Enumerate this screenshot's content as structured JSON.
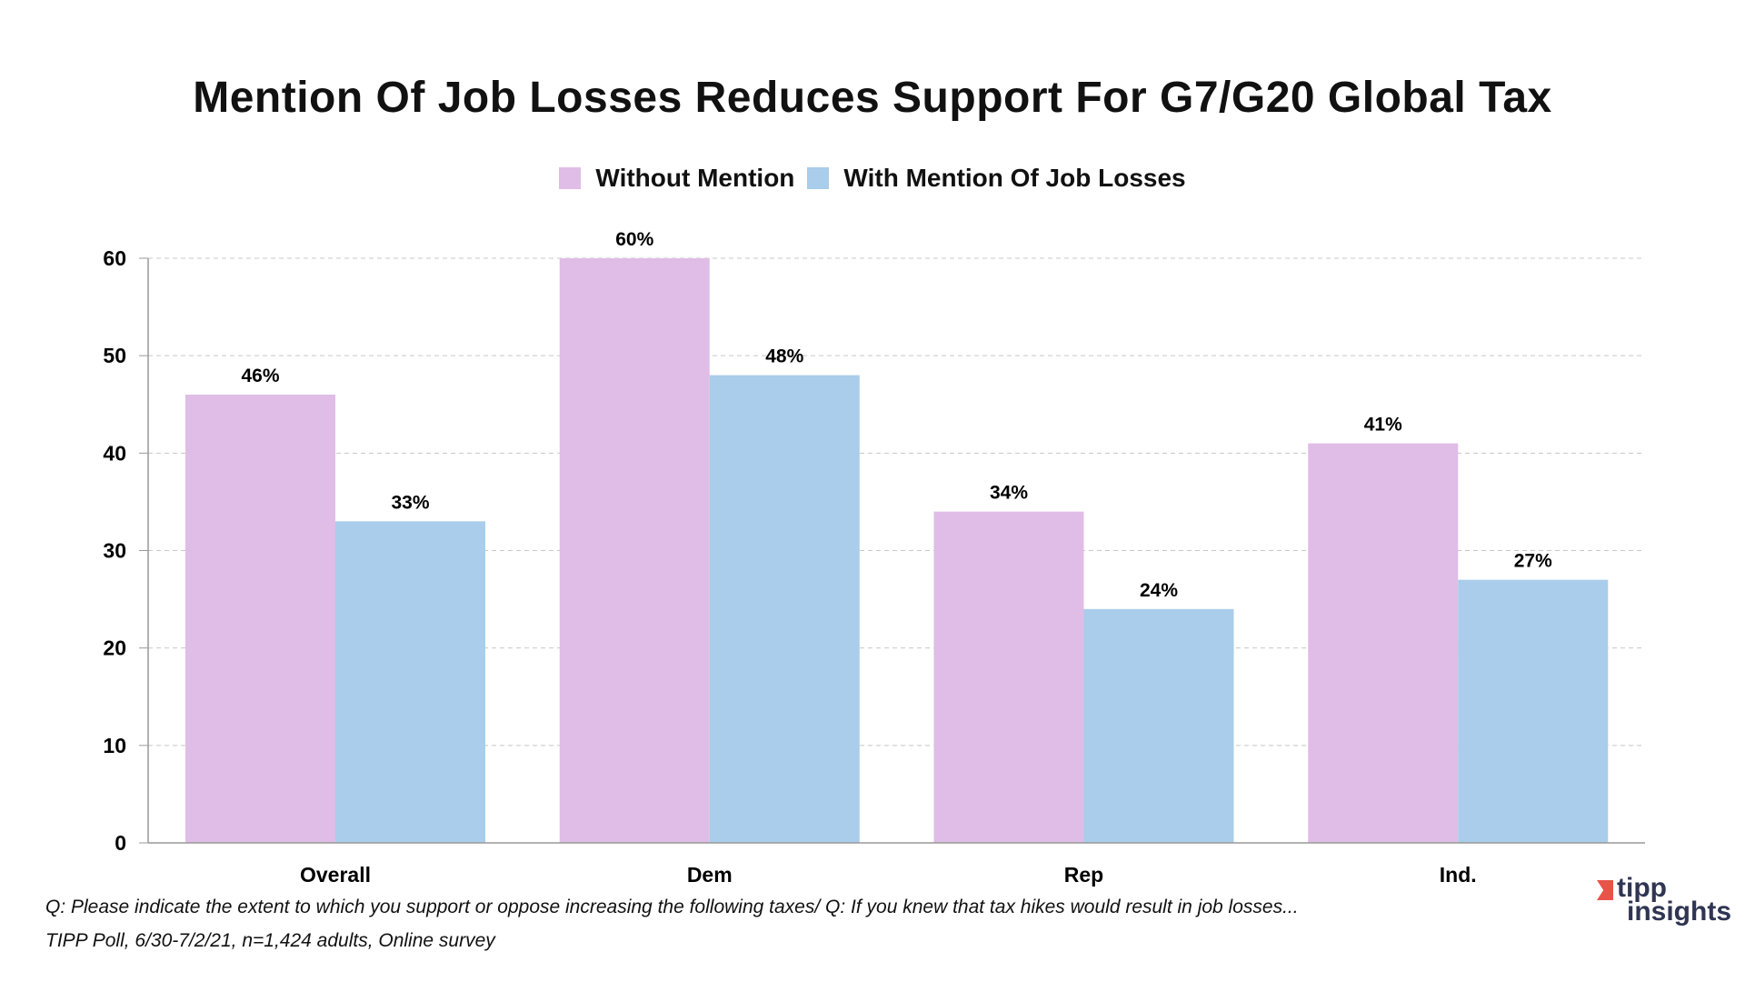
{
  "chart_data": {
    "type": "bar",
    "title": "Mention Of Job Losses Reduces Support For G7/G20 Global Tax",
    "categories": [
      "Overall",
      "Dem",
      "Rep",
      "Ind."
    ],
    "series": [
      {
        "name": "Without Mention",
        "values": [
          46,
          60,
          34,
          41
        ],
        "labels": [
          "46%",
          "60%",
          "34%",
          "41%"
        ],
        "color": "#dfbde6"
      },
      {
        "name": "With Mention Of Job Losses",
        "values": [
          33,
          48,
          24,
          27
        ],
        "labels": [
          "33%",
          "48%",
          "24%",
          "27%"
        ],
        "color": "#a9cdea"
      }
    ],
    "ylim": [
      0,
      60
    ],
    "yticks": [
      "0",
      "10",
      "20",
      "30",
      "40",
      "50",
      "60"
    ],
    "grid": true,
    "legend": "top-center",
    "xlabel": "",
    "ylabel": ""
  },
  "footer": {
    "question": "Q:  Please indicate the extent to which you support or oppose increasing the following taxes/ Q:  If  you knew that tax hikes would result in job losses...",
    "source": "TIPP Poll, 6/30-7/2/21, n=1,424 adults, Online survey"
  },
  "logo": {
    "line1": "tipp",
    "line2": "insights",
    "accent": "#e8544a"
  }
}
